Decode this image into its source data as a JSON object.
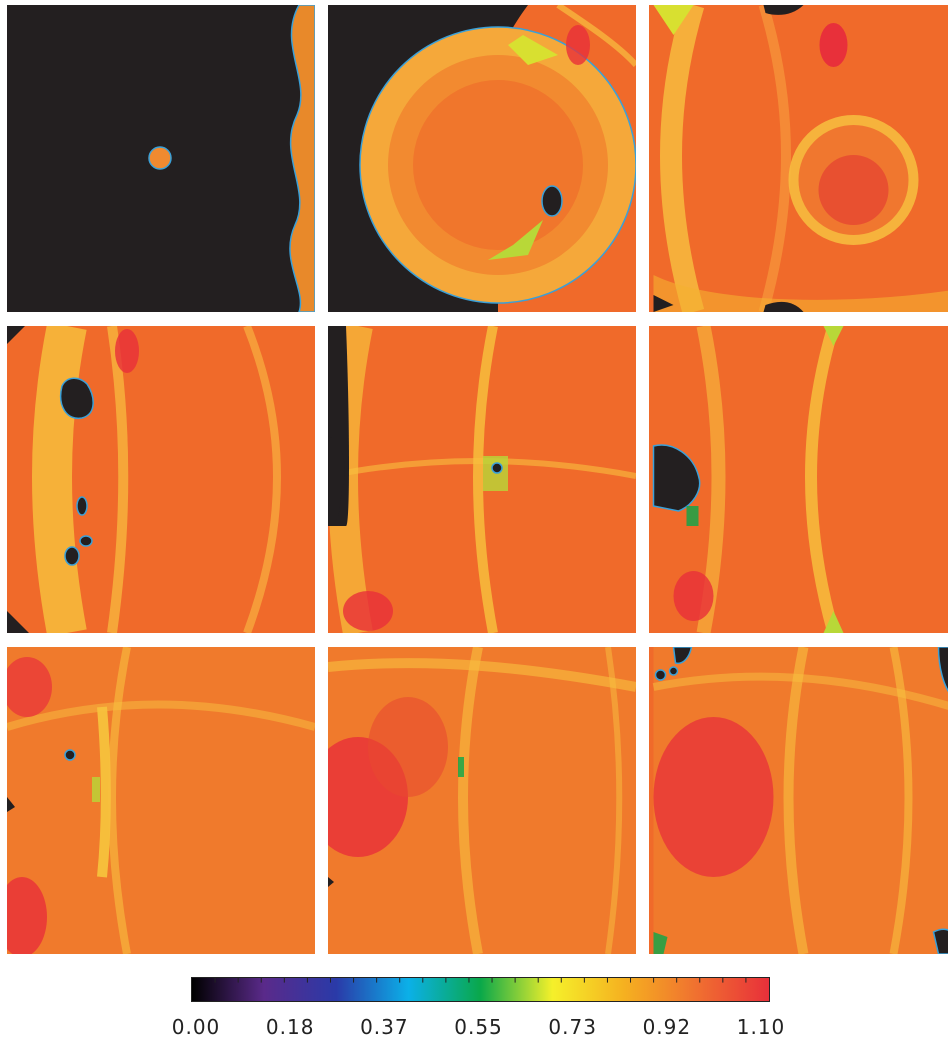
{
  "figure": {
    "panels": [
      {
        "id": "r1c1"
      },
      {
        "id": "r1c2"
      },
      {
        "id": "r1c3"
      },
      {
        "id": "r2c1"
      },
      {
        "id": "r2c2"
      },
      {
        "id": "r2c3"
      },
      {
        "id": "r3c1"
      },
      {
        "id": "r3c2"
      },
      {
        "id": "r3c3"
      }
    ],
    "colorbar": {
      "min": 0.0,
      "max": 1.1,
      "tick_labels": [
        "0.00",
        "0.18",
        "0.37",
        "0.55",
        "0.73",
        "0.92",
        "1.10"
      ],
      "stops": [
        "#000000",
        "#5a2a8a",
        "#2a3aa8",
        "#0bb0e8",
        "#0aa84a",
        "#f5f02a",
        "#f5b020",
        "#f07030",
        "#e8303a"
      ]
    }
  }
}
